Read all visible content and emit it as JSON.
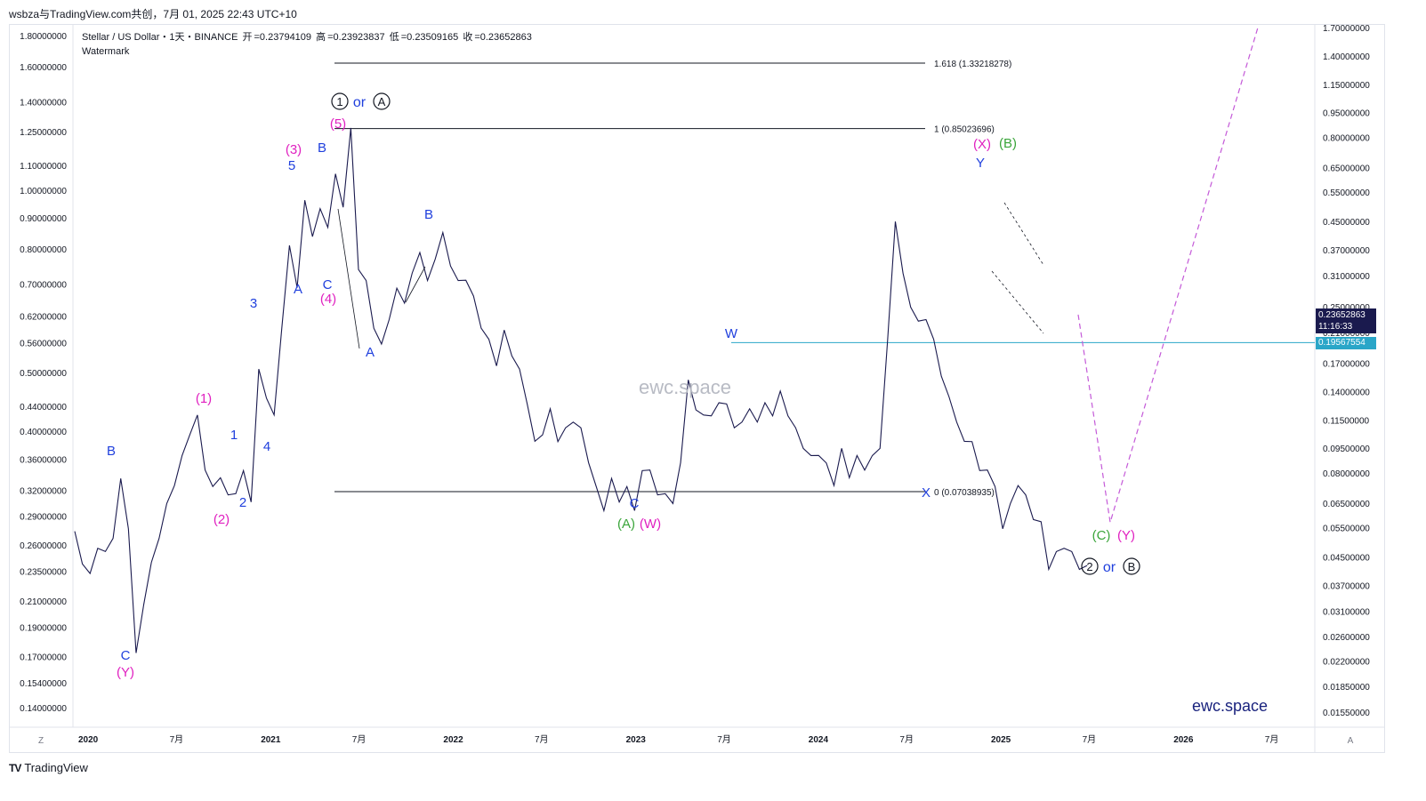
{
  "header": {
    "text": "wsbza与TradingView.com共创，7月 01, 2025 22:43 UTC+10"
  },
  "legend": {
    "symbol": "Stellar / US Dollar・1天・BINANCE",
    "open_label": "开",
    "open": "=0.23794109",
    "high_label": "高",
    "high": "=0.23923837",
    "low_label": "低",
    "low": "=0.23509165",
    "close_label": "收",
    "close": "=0.23652863",
    "line2": "Watermark"
  },
  "watermarks": {
    "center": "ewc.space",
    "bottom": "ewc.space"
  },
  "footer": {
    "logo_mark": "TV",
    "logo_text": "TradingView",
    "z_button": "Z",
    "a_button": "A"
  },
  "price_tags": {
    "current": "0.23652863",
    "countdown": "11:16:33",
    "level": "0.19567554"
  },
  "colors": {
    "candles": "#1a1a4e",
    "wave_blue": "#1f3fdd",
    "wave_magenta": "#e020c0",
    "wave_green": "#3aa53a",
    "projection": "#c45ad8",
    "hline": "#2aa6c8",
    "fib": "#131722",
    "price_tag_bg": "#1a1a4e",
    "level_tag_bg": "#2aa6c8"
  },
  "chart_data": {
    "type": "line",
    "title": "Stellar / US Dollar・1天・BINANCE",
    "scale": "log",
    "left_axis_ticks": [
      "1.80000000",
      "1.60000000",
      "1.40000000",
      "1.25000000",
      "1.10000000",
      "1.00000000",
      "0.90000000",
      "0.80000000",
      "0.70000000",
      "0.62000000",
      "0.56000000",
      "0.50000000",
      "0.44000000",
      "0.40000000",
      "0.36000000",
      "0.32000000",
      "0.29000000",
      "0.26000000",
      "0.23500000",
      "0.21000000",
      "0.19000000",
      "0.17000000",
      "0.15400000",
      "0.14000000"
    ],
    "right_axis_ticks": [
      "1.70000000",
      "1.40000000",
      "1.15000000",
      "0.95000000",
      "0.80000000",
      "0.65000000",
      "0.55000000",
      "0.45000000",
      "0.37000000",
      "0.31000000",
      "0.25000000",
      "0.21000000",
      "0.17000000",
      "0.14000000",
      "0.11500000",
      "0.09500000",
      "0.08000000",
      "0.06500000",
      "0.05500000",
      "0.04500000",
      "0.03700000",
      "0.03100000",
      "0.02600000",
      "0.02200000",
      "0.01850000",
      "0.01550000"
    ],
    "x_axis_ticks": [
      "2020",
      "7月",
      "2021",
      "7月",
      "2022",
      "7月",
      "2023",
      "7月",
      "2024",
      "7月",
      "2025",
      "7月",
      "2026",
      "7月"
    ],
    "fib_levels": [
      {
        "label": "1.618 (1.33218278)",
        "value": 1.33218278
      },
      {
        "label": "1 (0.85023696)",
        "value": 0.85023696
      },
      {
        "label": "0 (0.07038935)",
        "value": 0.07038935
      }
    ],
    "horizontal_level": 0.19567554,
    "last_close": 0.23652863,
    "wave_labels": [
      {
        "text": "B",
        "color": "blue"
      },
      {
        "text": "C",
        "color": "blue"
      },
      {
        "text": "(Y)",
        "color": "magenta"
      },
      {
        "text": "(1)",
        "color": "magenta"
      },
      {
        "text": "(2)",
        "color": "magenta"
      },
      {
        "text": "1",
        "color": "blue"
      },
      {
        "text": "2",
        "color": "blue"
      },
      {
        "text": "3",
        "color": "blue"
      },
      {
        "text": "4",
        "color": "blue"
      },
      {
        "text": "A",
        "color": "blue"
      },
      {
        "text": "5",
        "color": "blue"
      },
      {
        "text": "(3)",
        "color": "magenta"
      },
      {
        "text": "B",
        "color": "blue"
      },
      {
        "text": "C",
        "color": "blue"
      },
      {
        "text": "(4)",
        "color": "magenta"
      },
      {
        "text": "(5)",
        "color": "magenta"
      },
      {
        "text": "A",
        "color": "blue"
      },
      {
        "text": "B",
        "color": "blue"
      },
      {
        "text": "C",
        "color": "blue"
      },
      {
        "text": "(A)",
        "color": "green"
      },
      {
        "text": "(W)",
        "color": "magenta"
      },
      {
        "text": "W",
        "color": "blue"
      },
      {
        "text": "X",
        "color": "blue"
      },
      {
        "text": "Y",
        "color": "blue"
      },
      {
        "text": "(X)",
        "color": "magenta"
      },
      {
        "text": "(B)",
        "color": "green"
      },
      {
        "text": "(C)",
        "color": "green"
      },
      {
        "text": "(Y)",
        "color": "magenta"
      }
    ],
    "circle_labels": [
      {
        "first": "1",
        "joiner": "or",
        "second": "A"
      },
      {
        "first": "2",
        "joiner": "or",
        "second": "B"
      }
    ],
    "series": [
      {
        "values": [
          0.27,
          0.245,
          0.23,
          0.26,
          0.25,
          0.27,
          0.33,
          0.28,
          0.17,
          0.21,
          0.24,
          0.27,
          0.3,
          0.33,
          0.36,
          0.4,
          0.42,
          0.35,
          0.32,
          0.34,
          0.31,
          0.32,
          0.34,
          0.31,
          0.5,
          0.46,
          0.42,
          0.6,
          0.8,
          0.7,
          0.95,
          0.85,
          0.92,
          0.88,
          1.05,
          0.95,
          1.25,
          0.75,
          0.7,
          0.6,
          0.55,
          0.62,
          0.68,
          0.66,
          0.72,
          0.8,
          0.7,
          0.78,
          0.84,
          0.76,
          0.7,
          0.72,
          0.66,
          0.6,
          0.56,
          0.52,
          0.58,
          0.54,
          0.5,
          0.45,
          0.38,
          0.4,
          0.43,
          0.39,
          0.4,
          0.42,
          0.4,
          0.36,
          0.32,
          0.3,
          0.33,
          0.31,
          0.32,
          0.3,
          0.34,
          0.35,
          0.31,
          0.32,
          0.3,
          0.36,
          0.48,
          0.44,
          0.42,
          0.43,
          0.44,
          0.45,
          0.4,
          0.42,
          0.43,
          0.42,
          0.44,
          0.43,
          0.46,
          0.43,
          0.4,
          0.38,
          0.36,
          0.37,
          0.35,
          0.33,
          0.37,
          0.34,
          0.36,
          0.35,
          0.36,
          0.38,
          0.56,
          0.9,
          0.72,
          0.65,
          0.6,
          0.62,
          0.56,
          0.5,
          0.45,
          0.42,
          0.38,
          0.39,
          0.34,
          0.35,
          0.32,
          0.28,
          0.3,
          0.33,
          0.31,
          0.29,
          0.28,
          0.24,
          0.25,
          0.26,
          0.25,
          0.24,
          0.237
        ]
      }
    ],
    "projection": [
      0.237,
      0.057,
      1.7
    ]
  }
}
